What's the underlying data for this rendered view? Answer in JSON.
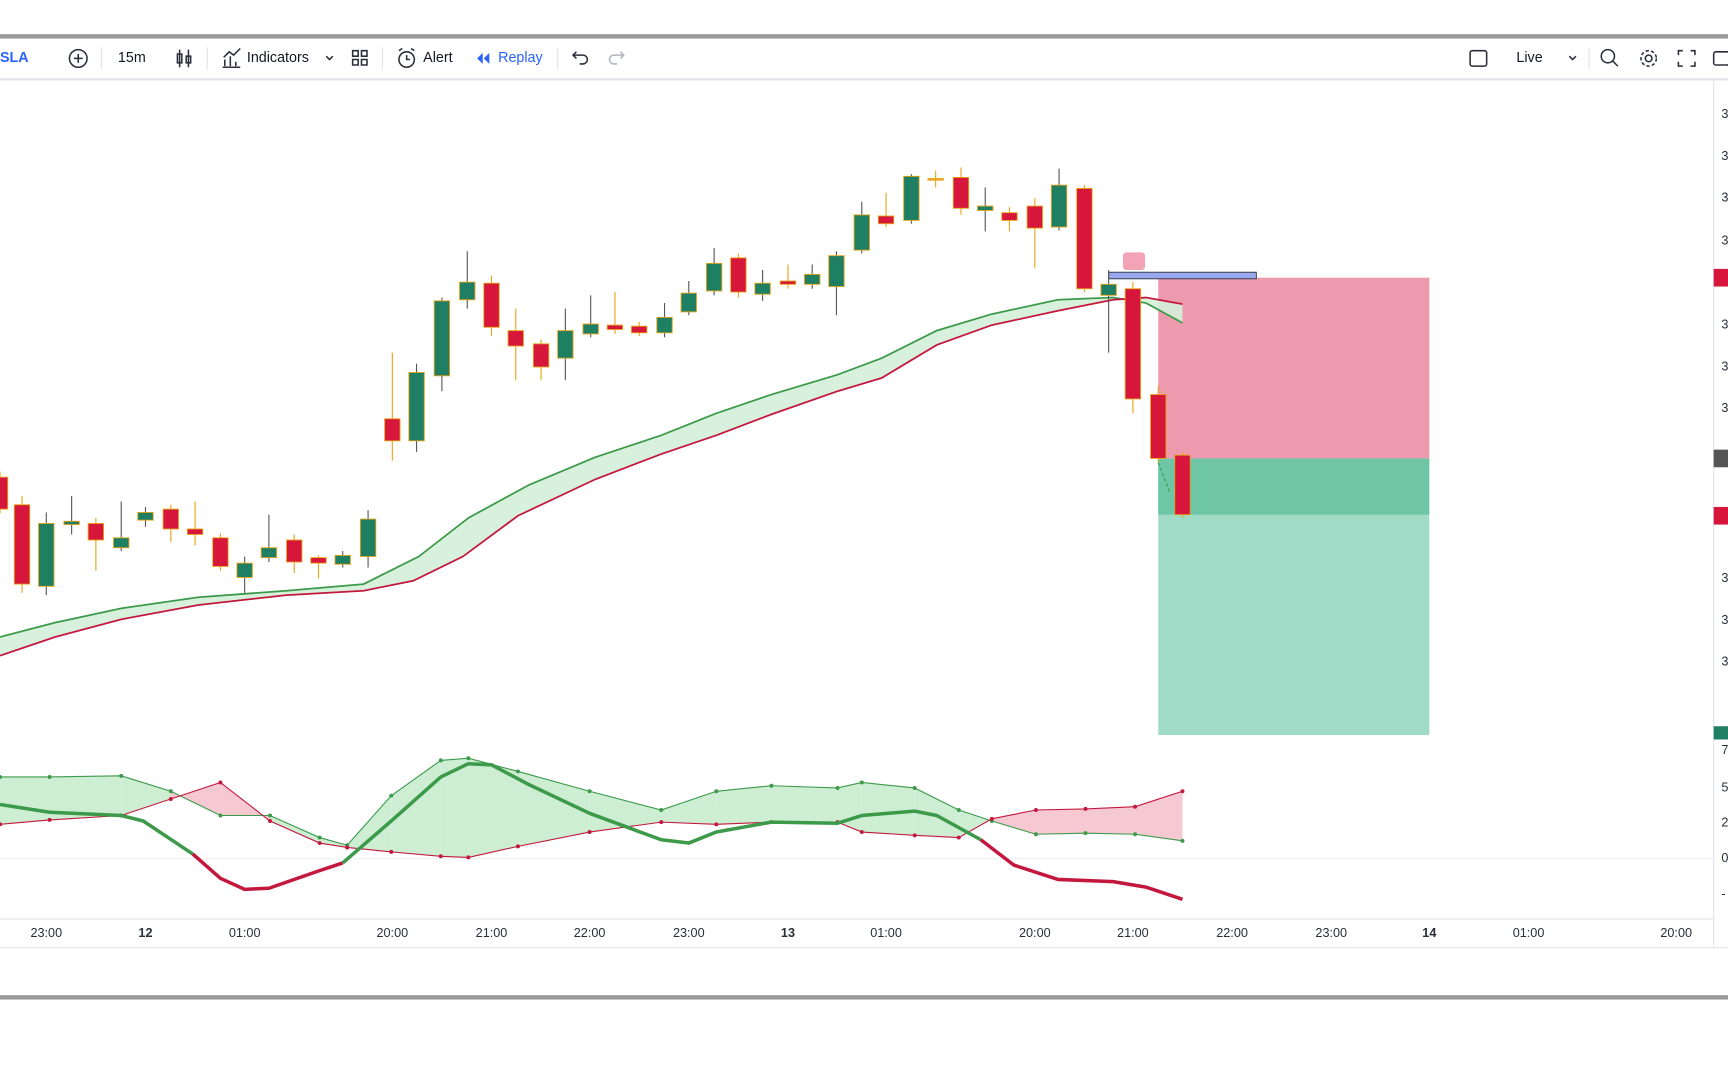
{
  "toolbar": {
    "symbol": "SLA",
    "interval": "15m",
    "indicators": "Indicators",
    "alert": "Alert",
    "replay": "Replay",
    "mode": "Live"
  },
  "time_axis": [
    "23:00",
    "12",
    "01:00",
    "20:00",
    "21:00",
    "22:00",
    "23:00",
    "13",
    "01:00",
    "20:00",
    "21:00",
    "22:00",
    "23:00",
    "14",
    "01:00",
    "20:00"
  ],
  "price_axis": [
    "3",
    "3",
    "3",
    "3",
    "3",
    "3",
    "3",
    "3",
    "3",
    "3"
  ],
  "oscillator_axis": [
    "7",
    "5",
    "2",
    "0",
    "-"
  ]
}
